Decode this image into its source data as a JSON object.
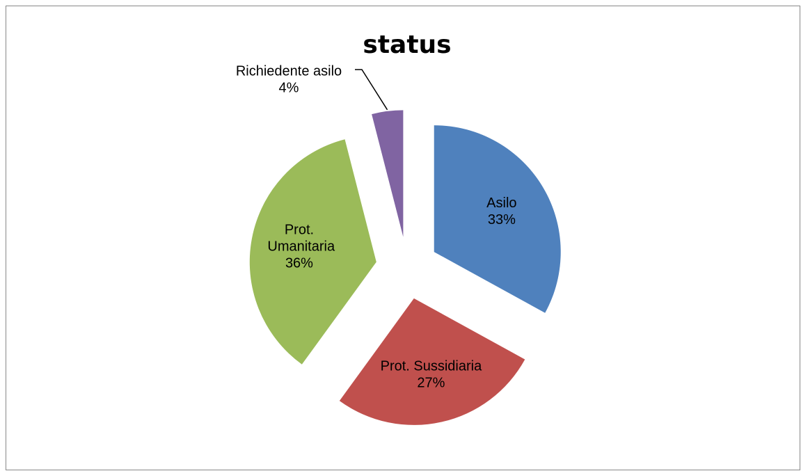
{
  "chart_data": {
    "type": "pie",
    "title": "status",
    "categories": [
      "Asilo",
      "Prot. Sussidiaria",
      "Prot. Umanitaria",
      "Richiedente asilo"
    ],
    "values": [
      33,
      27,
      36,
      4
    ],
    "value_labels": [
      "33%",
      "27%",
      "36%",
      "4%"
    ],
    "colors": [
      "#4f81bd",
      "#c0504d",
      "#9bbb59",
      "#8064a2"
    ]
  }
}
